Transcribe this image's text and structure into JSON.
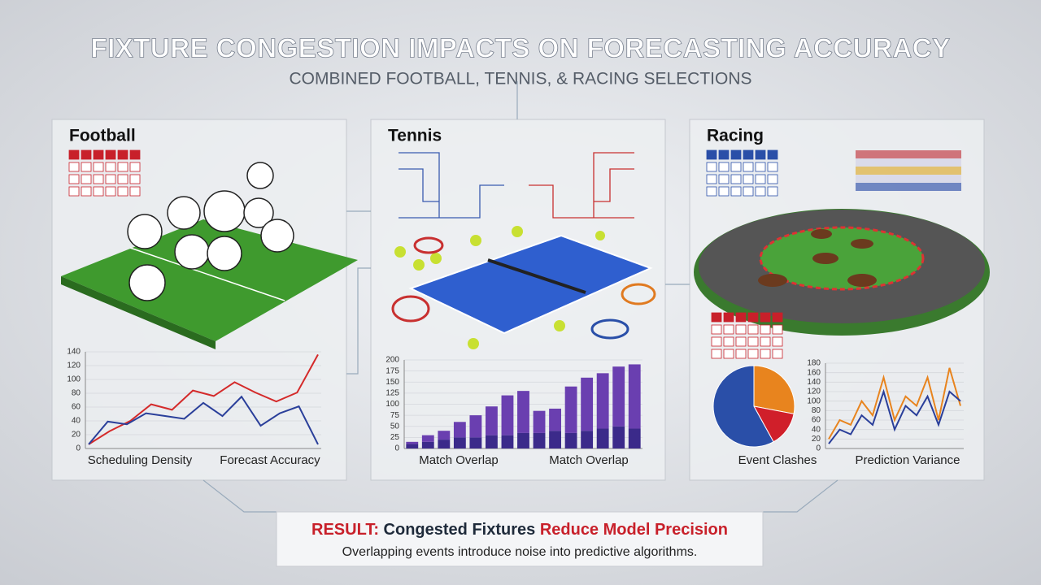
{
  "header": {
    "title": "FIXTURE CONGESTION IMPACTS ON FORECASTING ACCURACY",
    "subtitle": "COMBINED FOOTBALL, TENNIS, & RACING SELECTIONS"
  },
  "panels": [
    {
      "title": "Football",
      "charts": [
        {
          "type": "line",
          "ylim": [
            0,
            140
          ],
          "yticks": [
            0,
            20,
            40,
            60,
            80,
            100,
            120,
            140
          ],
          "series": [
            {
              "color": "#d42a2a",
              "values": [
                6,
                25,
                40,
                64,
                56,
                84,
                76,
                96,
                81,
                68,
                81,
                136
              ]
            },
            {
              "color": "#2a3f9a",
              "values": [
                6,
                39,
                35,
                51,
                47,
                43,
                66,
                47,
                75,
                33,
                51,
                61,
                6
              ]
            }
          ]
        }
      ],
      "captions": [
        "Scheduling Density",
        "Forecast Accuracy"
      ]
    },
    {
      "title": "Tennis",
      "charts": [
        {
          "type": "bar",
          "ylim": [
            0,
            200
          ],
          "yticks": [
            0,
            25,
            50,
            75,
            100,
            125,
            150,
            175,
            200
          ],
          "series": [
            {
              "color": "#3b2a8a",
              "values": [
                10,
                15,
                20,
                25,
                25,
                30,
                30,
                35,
                35,
                40,
                35,
                40,
                45,
                50,
                45
              ]
            },
            {
              "color": "#6a3fb0",
              "values": [
                5,
                15,
                20,
                35,
                50,
                65,
                90,
                95,
                50,
                50,
                105,
                120,
                125,
                135,
                145
              ]
            }
          ]
        }
      ],
      "captions": [
        "Match Overlap",
        "Match Overlap"
      ]
    },
    {
      "title": "Racing",
      "charts": [
        {
          "type": "pie",
          "values": [
            28,
            14,
            58
          ],
          "colors": [
            "#e8841e",
            "#d01f2a",
            "#2a4fa8"
          ]
        },
        {
          "type": "line",
          "ylim": [
            0,
            180
          ],
          "yticks": [
            0,
            20,
            40,
            60,
            80,
            100,
            120,
            140,
            160,
            180
          ],
          "series": [
            {
              "color": "#e8841e",
              "values": [
                20,
                60,
                50,
                100,
                70,
                150,
                60,
                110,
                90,
                150,
                60,
                170,
                90
              ]
            },
            {
              "color": "#2a3f9a",
              "values": [
                10,
                40,
                30,
                70,
                50,
                120,
                40,
                90,
                70,
                110,
                50,
                120,
                100
              ]
            }
          ]
        }
      ],
      "captions": [
        "Event Clashes",
        "Prediction Variance"
      ]
    }
  ],
  "result": {
    "parts": [
      "RESULT:",
      "Congested Fixtures",
      "Reduce Model Precision"
    ],
    "text": "Overlapping events introduce noise into predictive algorithms."
  }
}
